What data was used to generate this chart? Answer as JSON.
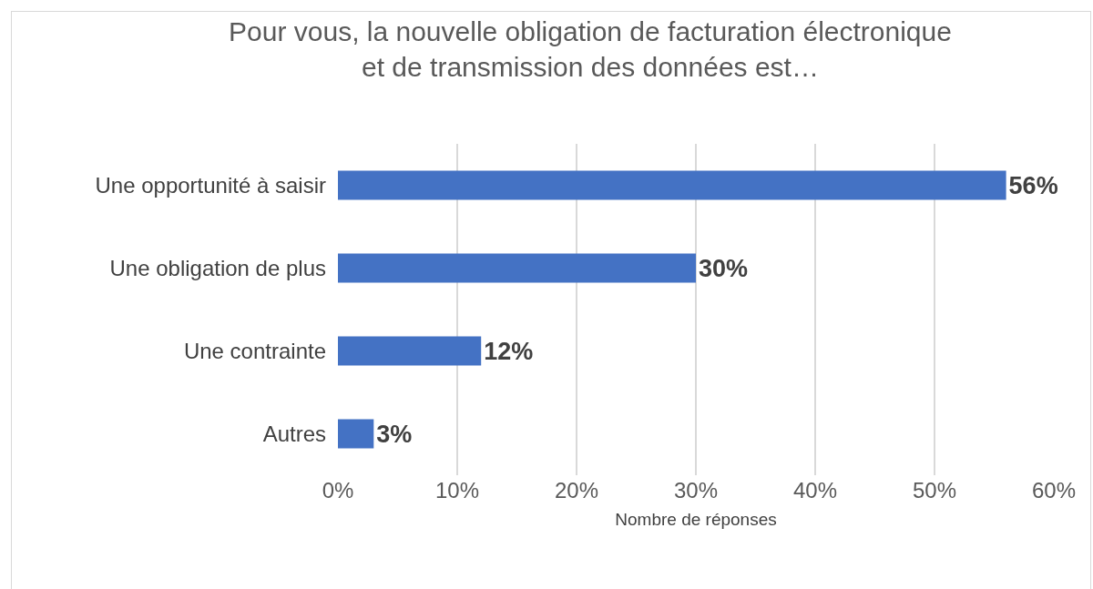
{
  "chart_data": {
    "type": "bar",
    "orientation": "horizontal",
    "title": "Pour vous, la nouvelle obligation de facturation électronique\net de transmission des données est…",
    "xlabel": "Nombre de réponses",
    "categories": [
      "Une opportunité à saisir",
      "Une obligation de plus",
      "Une contrainte",
      "Autres"
    ],
    "values": [
      56,
      30,
      12,
      3
    ],
    "value_labels": [
      "56%",
      "30%",
      "12%",
      "3%"
    ],
    "color": "#4472c4",
    "xlim": [
      0,
      60
    ],
    "xticks": [
      {
        "value": 0,
        "label": "0%"
      },
      {
        "value": 10,
        "label": "10%"
      },
      {
        "value": 20,
        "label": "20%"
      },
      {
        "value": 30,
        "label": "30%"
      },
      {
        "value": 40,
        "label": "40%"
      },
      {
        "value": 50,
        "label": "50%"
      },
      {
        "value": 60,
        "label": "60%"
      }
    ],
    "grid": "x"
  }
}
